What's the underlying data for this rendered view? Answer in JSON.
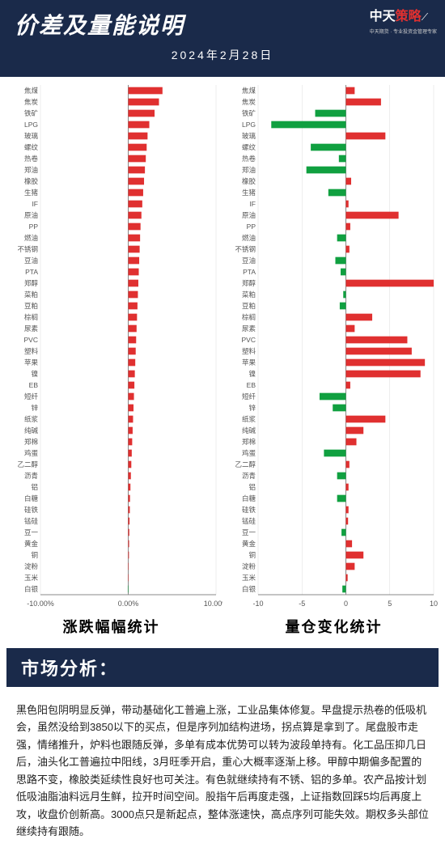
{
  "header": {
    "title": "价差及量能说明",
    "date": "2024年2月28日",
    "logo_main": "中天",
    "logo_accent": "策略",
    "logo_sub": "中天期货 · 专业投资金管理专家"
  },
  "colors": {
    "header_bg": "#1a2a4a",
    "up": "#e03030",
    "down": "#10a040",
    "axis": "#888888",
    "grid": "#dddddd",
    "label": "#555555",
    "text": "#222222"
  },
  "labels": [
    "焦煤",
    "焦炭",
    "铁矿",
    "LPG",
    "玻璃",
    "螺纹",
    "热卷",
    "郑油",
    "橡胶",
    "生猪",
    "IF",
    "原油",
    "PP",
    "燃油",
    "不锈钢",
    "豆油",
    "PTA",
    "郑醇",
    "菜粕",
    "豆粕",
    "棕榈",
    "尿素",
    "PVC",
    "塑料",
    "苹果",
    "镍",
    "EB",
    "短纤",
    "锌",
    "纸浆",
    "纯碱",
    "郑棉",
    "鸡蛋",
    "乙二醇",
    "沥青",
    "铝",
    "白糖",
    "硅铁",
    "锰硅",
    "豆一",
    "黄金",
    "铜",
    "淀粉",
    "玉米",
    "白银"
  ],
  "left_chart": {
    "title": "涨跌幅幅统计",
    "xmin": -10.0,
    "xmax": 10.0,
    "xticks": [
      -10.0,
      0.0,
      10.0
    ],
    "xtick_labels": [
      "-10.00%",
      "0.00%",
      "10.00%"
    ],
    "values": [
      3.9,
      3.5,
      3.0,
      2.4,
      2.2,
      2.1,
      2.0,
      1.9,
      1.8,
      1.7,
      1.6,
      1.5,
      1.4,
      1.35,
      1.3,
      1.25,
      1.2,
      1.15,
      1.1,
      1.05,
      1.0,
      0.95,
      0.9,
      0.85,
      0.8,
      0.75,
      0.7,
      0.65,
      0.6,
      0.55,
      0.5,
      0.45,
      0.4,
      0.35,
      0.3,
      0.25,
      0.2,
      0.18,
      0.15,
      0.12,
      0.1,
      0.08,
      0.05,
      0.03,
      -0.05
    ]
  },
  "right_chart": {
    "title": "量仓变化统计",
    "xmin": -10.0,
    "xmax": 10.0,
    "xticks": [
      -10,
      -5,
      0,
      5,
      10
    ],
    "xtick_labels": [
      "-10",
      "-5",
      "0",
      "5",
      "10"
    ],
    "values": [
      1.0,
      4.0,
      -3.5,
      -8.5,
      4.5,
      -4.0,
      -0.8,
      -4.5,
      0.6,
      -2.0,
      0.3,
      6.0,
      0.5,
      -1.0,
      0.4,
      -1.2,
      -0.6,
      10.0,
      -0.3,
      -0.7,
      3.0,
      1.0,
      7.0,
      7.5,
      9.0,
      8.5,
      0.5,
      -3.0,
      -1.5,
      4.5,
      2.0,
      1.2,
      -2.5,
      0.4,
      -1.0,
      0.3,
      -1.0,
      0.3,
      0.25,
      -0.5,
      0.7,
      2.0,
      1.0,
      0.2,
      -0.4
    ]
  },
  "section_title": "市场分析：",
  "analysis_text": "黑色阳包阴明显反弹，带动基础化工普遍上涨，工业品集体修复。早盘提示热卷的低吸机会，虽然没给到3850以下的买点，但是序列加结构进场，拐点算是拿到了。尾盘股市走强，情绪推升，炉料也跟随反弹，多单有成本优势可以转为波段单持有。化工品压抑几日后，油头化工普遍拉中阳线，3月旺季开启，重心大概率逐渐上移。甲醇中期偏多配置的思路不变，橡胶类延续性良好也可关注。有色就继续持有不锈、铝的多单。农产品按计划低吸油脂油料远月生鲜，拉开时间空间。股指午后再度走强，上证指数回踩5均后再度上攻，收盘价创新高。3000点只是新起点，整体涨速快，高点序列可能失效。期权多头部位继续持有跟随。"
}
